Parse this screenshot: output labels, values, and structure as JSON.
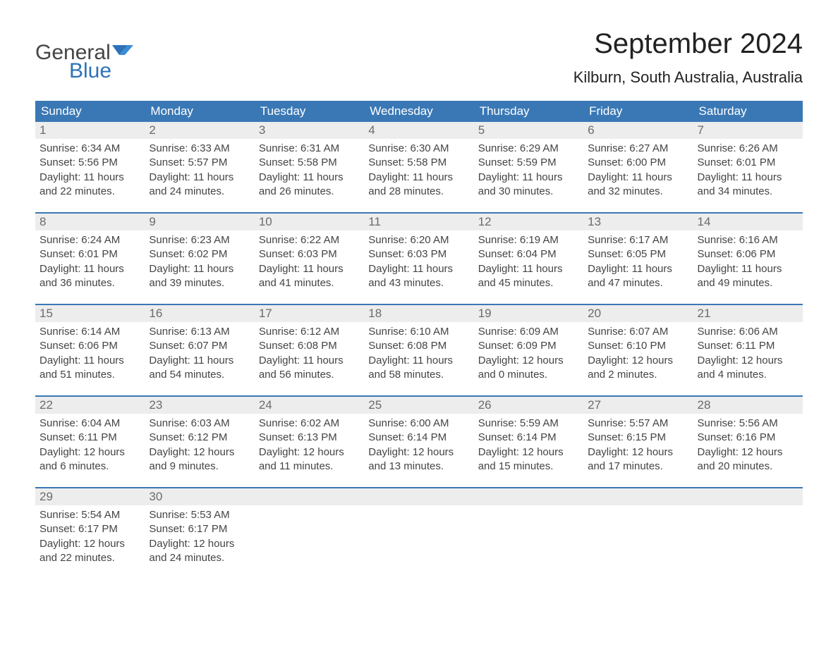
{
  "logo": {
    "general": "General",
    "blue": "Blue"
  },
  "title": "September 2024",
  "location": "Kilburn, South Australia, Australia",
  "colors": {
    "header_bg": "#3a78b5",
    "header_text": "#ffffff",
    "daynum_bg": "#ededed",
    "daynum_text": "#6b6b6b",
    "body_text": "#444444",
    "row_border": "#3a78b5",
    "logo_blue": "#2d72b8"
  },
  "day_headers": [
    "Sunday",
    "Monday",
    "Tuesday",
    "Wednesday",
    "Thursday",
    "Friday",
    "Saturday"
  ],
  "weeks": [
    [
      {
        "n": "1",
        "sr": "Sunrise: 6:34 AM",
        "ss": "Sunset: 5:56 PM",
        "d1": "Daylight: 11 hours",
        "d2": "and 22 minutes."
      },
      {
        "n": "2",
        "sr": "Sunrise: 6:33 AM",
        "ss": "Sunset: 5:57 PM",
        "d1": "Daylight: 11 hours",
        "d2": "and 24 minutes."
      },
      {
        "n": "3",
        "sr": "Sunrise: 6:31 AM",
        "ss": "Sunset: 5:58 PM",
        "d1": "Daylight: 11 hours",
        "d2": "and 26 minutes."
      },
      {
        "n": "4",
        "sr": "Sunrise: 6:30 AM",
        "ss": "Sunset: 5:58 PM",
        "d1": "Daylight: 11 hours",
        "d2": "and 28 minutes."
      },
      {
        "n": "5",
        "sr": "Sunrise: 6:29 AM",
        "ss": "Sunset: 5:59 PM",
        "d1": "Daylight: 11 hours",
        "d2": "and 30 minutes."
      },
      {
        "n": "6",
        "sr": "Sunrise: 6:27 AM",
        "ss": "Sunset: 6:00 PM",
        "d1": "Daylight: 11 hours",
        "d2": "and 32 minutes."
      },
      {
        "n": "7",
        "sr": "Sunrise: 6:26 AM",
        "ss": "Sunset: 6:01 PM",
        "d1": "Daylight: 11 hours",
        "d2": "and 34 minutes."
      }
    ],
    [
      {
        "n": "8",
        "sr": "Sunrise: 6:24 AM",
        "ss": "Sunset: 6:01 PM",
        "d1": "Daylight: 11 hours",
        "d2": "and 36 minutes."
      },
      {
        "n": "9",
        "sr": "Sunrise: 6:23 AM",
        "ss": "Sunset: 6:02 PM",
        "d1": "Daylight: 11 hours",
        "d2": "and 39 minutes."
      },
      {
        "n": "10",
        "sr": "Sunrise: 6:22 AM",
        "ss": "Sunset: 6:03 PM",
        "d1": "Daylight: 11 hours",
        "d2": "and 41 minutes."
      },
      {
        "n": "11",
        "sr": "Sunrise: 6:20 AM",
        "ss": "Sunset: 6:03 PM",
        "d1": "Daylight: 11 hours",
        "d2": "and 43 minutes."
      },
      {
        "n": "12",
        "sr": "Sunrise: 6:19 AM",
        "ss": "Sunset: 6:04 PM",
        "d1": "Daylight: 11 hours",
        "d2": "and 45 minutes."
      },
      {
        "n": "13",
        "sr": "Sunrise: 6:17 AM",
        "ss": "Sunset: 6:05 PM",
        "d1": "Daylight: 11 hours",
        "d2": "and 47 minutes."
      },
      {
        "n": "14",
        "sr": "Sunrise: 6:16 AM",
        "ss": "Sunset: 6:06 PM",
        "d1": "Daylight: 11 hours",
        "d2": "and 49 minutes."
      }
    ],
    [
      {
        "n": "15",
        "sr": "Sunrise: 6:14 AM",
        "ss": "Sunset: 6:06 PM",
        "d1": "Daylight: 11 hours",
        "d2": "and 51 minutes."
      },
      {
        "n": "16",
        "sr": "Sunrise: 6:13 AM",
        "ss": "Sunset: 6:07 PM",
        "d1": "Daylight: 11 hours",
        "d2": "and 54 minutes."
      },
      {
        "n": "17",
        "sr": "Sunrise: 6:12 AM",
        "ss": "Sunset: 6:08 PM",
        "d1": "Daylight: 11 hours",
        "d2": "and 56 minutes."
      },
      {
        "n": "18",
        "sr": "Sunrise: 6:10 AM",
        "ss": "Sunset: 6:08 PM",
        "d1": "Daylight: 11 hours",
        "d2": "and 58 minutes."
      },
      {
        "n": "19",
        "sr": "Sunrise: 6:09 AM",
        "ss": "Sunset: 6:09 PM",
        "d1": "Daylight: 12 hours",
        "d2": "and 0 minutes."
      },
      {
        "n": "20",
        "sr": "Sunrise: 6:07 AM",
        "ss": "Sunset: 6:10 PM",
        "d1": "Daylight: 12 hours",
        "d2": "and 2 minutes."
      },
      {
        "n": "21",
        "sr": "Sunrise: 6:06 AM",
        "ss": "Sunset: 6:11 PM",
        "d1": "Daylight: 12 hours",
        "d2": "and 4 minutes."
      }
    ],
    [
      {
        "n": "22",
        "sr": "Sunrise: 6:04 AM",
        "ss": "Sunset: 6:11 PM",
        "d1": "Daylight: 12 hours",
        "d2": "and 6 minutes."
      },
      {
        "n": "23",
        "sr": "Sunrise: 6:03 AM",
        "ss": "Sunset: 6:12 PM",
        "d1": "Daylight: 12 hours",
        "d2": "and 9 minutes."
      },
      {
        "n": "24",
        "sr": "Sunrise: 6:02 AM",
        "ss": "Sunset: 6:13 PM",
        "d1": "Daylight: 12 hours",
        "d2": "and 11 minutes."
      },
      {
        "n": "25",
        "sr": "Sunrise: 6:00 AM",
        "ss": "Sunset: 6:14 PM",
        "d1": "Daylight: 12 hours",
        "d2": "and 13 minutes."
      },
      {
        "n": "26",
        "sr": "Sunrise: 5:59 AM",
        "ss": "Sunset: 6:14 PM",
        "d1": "Daylight: 12 hours",
        "d2": "and 15 minutes."
      },
      {
        "n": "27",
        "sr": "Sunrise: 5:57 AM",
        "ss": "Sunset: 6:15 PM",
        "d1": "Daylight: 12 hours",
        "d2": "and 17 minutes."
      },
      {
        "n": "28",
        "sr": "Sunrise: 5:56 AM",
        "ss": "Sunset: 6:16 PM",
        "d1": "Daylight: 12 hours",
        "d2": "and 20 minutes."
      }
    ],
    [
      {
        "n": "29",
        "sr": "Sunrise: 5:54 AM",
        "ss": "Sunset: 6:17 PM",
        "d1": "Daylight: 12 hours",
        "d2": "and 22 minutes."
      },
      {
        "n": "30",
        "sr": "Sunrise: 5:53 AM",
        "ss": "Sunset: 6:17 PM",
        "d1": "Daylight: 12 hours",
        "d2": "and 24 minutes."
      },
      {
        "empty": true
      },
      {
        "empty": true
      },
      {
        "empty": true
      },
      {
        "empty": true
      },
      {
        "empty": true
      }
    ]
  ]
}
